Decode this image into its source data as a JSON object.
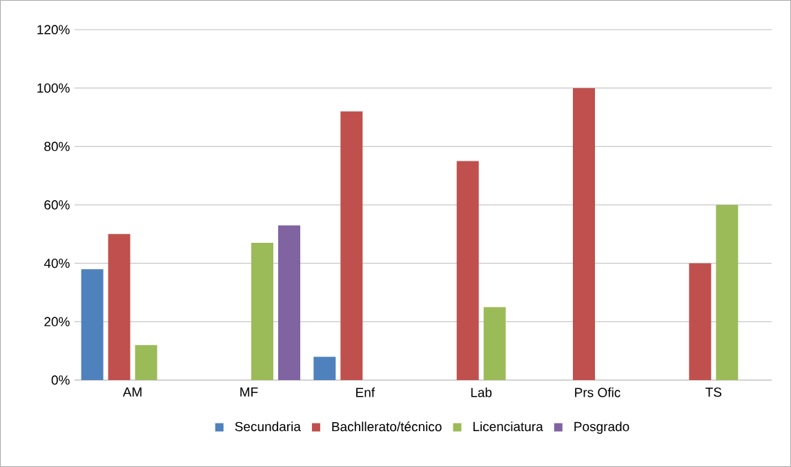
{
  "chart_data": {
    "type": "bar",
    "categories": [
      "AM",
      "MF",
      "Enf",
      "Lab",
      "Prs Ofic",
      "TS"
    ],
    "series": [
      {
        "name": "Secundaria",
        "color": "#4f81bd",
        "values": [
          38,
          null,
          8,
          null,
          null,
          null
        ]
      },
      {
        "name": "Bachllerato/técnico",
        "color": "#c0504d",
        "values": [
          50,
          null,
          92,
          75,
          100,
          40
        ]
      },
      {
        "name": "Licenciatura",
        "color": "#9bbb59",
        "values": [
          12,
          47,
          null,
          25,
          null,
          60
        ]
      },
      {
        "name": "Posgrado",
        "color": "#8064a2",
        "values": [
          null,
          53,
          null,
          null,
          null,
          null
        ]
      }
    ],
    "ylim": [
      0,
      120
    ],
    "yticks": [
      {
        "value": 0,
        "label": "0%"
      },
      {
        "value": 20,
        "label": "20%"
      },
      {
        "value": 40,
        "label": "40%"
      },
      {
        "value": 60,
        "label": "60%"
      },
      {
        "value": 80,
        "label": "80%"
      },
      {
        "value": 100,
        "label": "100%"
      },
      {
        "value": 120,
        "label": "120%"
      }
    ],
    "grid": "y",
    "legend": "bottom"
  }
}
